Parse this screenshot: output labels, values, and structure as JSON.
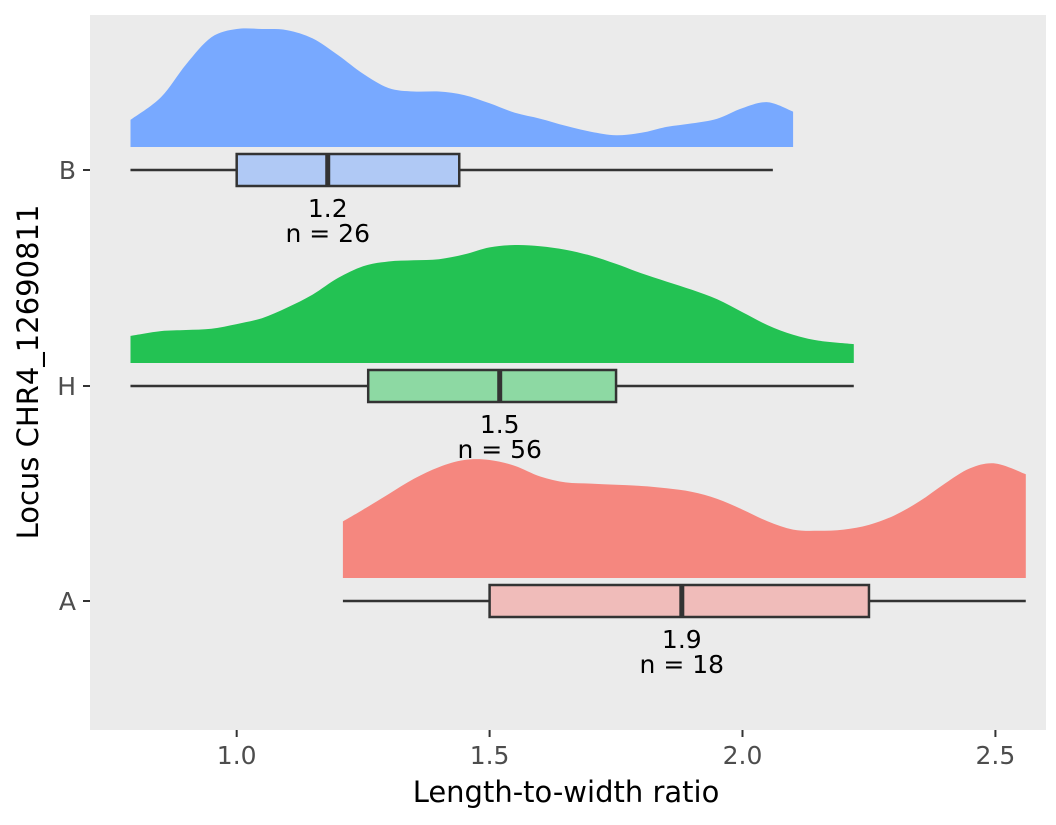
{
  "chart_data": {
    "type": "raincloud",
    "xlabel": "Length-to-width ratio",
    "ylabel": "Locus CHR4_12690811",
    "xlim": [
      0.71,
      2.6
    ],
    "x_ticks": [
      1.0,
      1.5,
      2.0,
      2.5
    ],
    "x_tick_labels": [
      "1.0",
      "1.5",
      "2.0",
      "2.5"
    ],
    "grid": false,
    "categories": [
      "B",
      "H",
      "A"
    ],
    "series": [
      {
        "name": "B",
        "fill_color": "#78a9ff",
        "box_color": "#b0c9f5",
        "box": {
          "min": 0.79,
          "q1": 1.0,
          "median": 1.18,
          "q3": 1.44,
          "max": 2.06
        },
        "density": {
          "x": [
            0.79,
            0.85,
            0.9,
            0.95,
            1.0,
            1.05,
            1.1,
            1.15,
            1.2,
            1.25,
            1.3,
            1.35,
            1.4,
            1.45,
            1.5,
            1.55,
            1.6,
            1.65,
            1.7,
            1.75,
            1.8,
            1.85,
            1.9,
            1.95,
            2.0,
            2.05,
            2.1
          ],
          "y": [
            0.23,
            0.42,
            0.7,
            0.93,
            1.0,
            1.0,
            0.99,
            0.92,
            0.78,
            0.62,
            0.5,
            0.47,
            0.47,
            0.44,
            0.37,
            0.29,
            0.24,
            0.18,
            0.13,
            0.1,
            0.12,
            0.17,
            0.2,
            0.24,
            0.33,
            0.38,
            0.3
          ]
        },
        "median_label": "1.2",
        "n_label": "n = 26"
      },
      {
        "name": "H",
        "fill_color": "#23c253",
        "box_color": "#8dd9a3",
        "box": {
          "min": 0.79,
          "q1": 1.26,
          "median": 1.52,
          "q3": 1.75,
          "max": 2.22
        },
        "density": {
          "x": [
            0.79,
            0.85,
            0.9,
            0.95,
            1.0,
            1.05,
            1.1,
            1.15,
            1.2,
            1.25,
            1.3,
            1.35,
            1.4,
            1.45,
            1.5,
            1.55,
            1.6,
            1.65,
            1.7,
            1.75,
            1.8,
            1.85,
            1.9,
            1.95,
            2.0,
            2.05,
            2.1,
            2.15,
            2.22
          ],
          "y": [
            0.23,
            0.27,
            0.28,
            0.29,
            0.33,
            0.38,
            0.47,
            0.58,
            0.72,
            0.82,
            0.86,
            0.87,
            0.88,
            0.92,
            0.98,
            1.0,
            0.99,
            0.96,
            0.91,
            0.84,
            0.76,
            0.69,
            0.62,
            0.54,
            0.43,
            0.32,
            0.24,
            0.19,
            0.16
          ]
        },
        "median_label": "1.5",
        "n_label": "n = 56"
      },
      {
        "name": "A",
        "fill_color": "#f5877f",
        "box_color": "#f0bcba",
        "box": {
          "min": 1.21,
          "q1": 1.5,
          "median": 1.88,
          "q3": 2.25,
          "max": 2.56
        },
        "density": {
          "x": [
            1.21,
            1.25,
            1.3,
            1.35,
            1.4,
            1.45,
            1.5,
            1.55,
            1.6,
            1.65,
            1.7,
            1.75,
            1.8,
            1.85,
            1.9,
            1.95,
            2.0,
            2.05,
            2.1,
            2.15,
            2.2,
            2.25,
            2.3,
            2.35,
            2.4,
            2.45,
            2.5,
            2.56
          ],
          "y": [
            0.48,
            0.58,
            0.71,
            0.84,
            0.94,
            1.0,
            1.0,
            0.95,
            0.86,
            0.81,
            0.8,
            0.79,
            0.78,
            0.76,
            0.73,
            0.67,
            0.58,
            0.48,
            0.41,
            0.4,
            0.41,
            0.45,
            0.53,
            0.65,
            0.8,
            0.93,
            0.97,
            0.88
          ]
        },
        "median_label": "1.9",
        "n_label": "n = 18"
      }
    ]
  }
}
